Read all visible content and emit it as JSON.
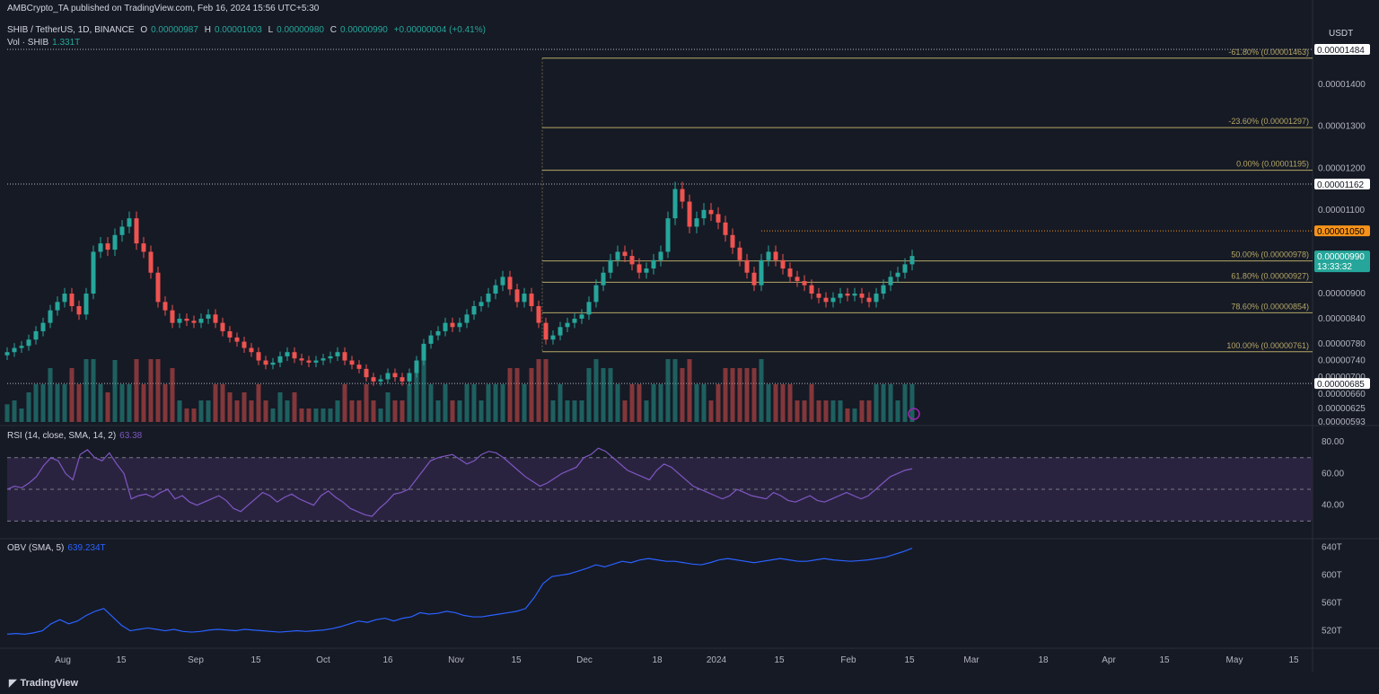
{
  "header": {
    "publisher": "AMBCrypto_TA published on TradingView.com, Feb 16, 2024 15:56 UTC+5:30",
    "symbol": "SHIB / TetherUS, 1D, BINANCE",
    "o_label": "O",
    "o_value": "0.00000987",
    "h_label": "H",
    "h_value": "0.00001003",
    "l_label": "L",
    "l_value": "0.00000980",
    "c_label": "C",
    "c_value": "0.00000990",
    "change": "+0.00000004 (+0.41%)",
    "vol_label": "Vol · SHIB",
    "vol_value": "1.331T"
  },
  "colors": {
    "background": "#161a25",
    "up": "#26a69a",
    "down": "#ef5350",
    "fib": "#b5a766",
    "rsi": "#7e57c2",
    "rsi_band": "#2a2340",
    "obv": "#2962ff",
    "orange": "#f7931a",
    "axis_text": "#b2b5be"
  },
  "currency": "USDT",
  "footer": {
    "logo": "TradingView"
  },
  "chart_data": [
    {
      "type": "candlestick",
      "title": "SHIB / TetherUS, 1D, BINANCE",
      "y_axis_ticks": [
        "0.00001400",
        "0.00001300",
        "0.00001200",
        "0.00001100",
        "0.00000900",
        "0.00000840",
        "0.00000780",
        "0.00000740",
        "0.00000700",
        "0.00000660",
        "0.00000625",
        "0.00000593"
      ],
      "price_labels": [
        {
          "value": "0.00001484",
          "style": "white"
        },
        {
          "value": "0.00001162",
          "style": "white"
        },
        {
          "value": "0.00001050",
          "style": "orange"
        },
        {
          "value": "0.00000990",
          "style": "green",
          "countdown": "13:33:32"
        },
        {
          "value": "0.00000685",
          "style": "white"
        }
      ],
      "fib_levels": [
        {
          "label": "-61.80% (0.00001463)",
          "price": 1.463e-05
        },
        {
          "label": "-23.60% (0.00001297)",
          "price": 1.297e-05
        },
        {
          "label": "0.00% (0.00001195)",
          "price": 1.195e-05
        },
        {
          "label": "50.00% (0.00000978)",
          "price": 9.78e-06
        },
        {
          "label": "61.80% (0.00000927)",
          "price": 9.27e-06
        },
        {
          "label": "78.60% (0.00000854)",
          "price": 8.54e-06
        },
        {
          "label": "100.00% (0.00000761)",
          "price": 7.61e-06
        }
      ],
      "x_ticks": [
        "Aug",
        "15",
        "Sep",
        "15",
        "Oct",
        "16",
        "Nov",
        "15",
        "Dec",
        "18",
        "2024",
        "15",
        "Feb",
        "15",
        "Mar",
        "18",
        "Apr",
        "15",
        "May",
        "15"
      ],
      "close_series": [
        7.6e-06,
        7.7e-06,
        7.75e-06,
        7.9e-06,
        8.1e-06,
        8.3e-06,
        8.6e-06,
        8.8e-06,
        9e-06,
        8.7e-06,
        8.5e-06,
        9e-06,
        1e-05,
        1.02e-05,
        1.005e-05,
        1.04e-05,
        1.06e-05,
        1.08e-05,
        1.02e-05,
        1e-05,
        9.5e-06,
        8.8e-06,
        8.6e-06,
        8.3e-06,
        8.4e-06,
        8.35e-06,
        8.3e-06,
        8.4e-06,
        8.5e-06,
        8.3e-06,
        8.1e-06,
        7.95e-06,
        7.85e-06,
        7.7e-06,
        7.6e-06,
        7.4e-06,
        7.3e-06,
        7.35e-06,
        7.5e-06,
        7.6e-06,
        7.45e-06,
        7.4e-06,
        7.35e-06,
        7.4e-06,
        7.45e-06,
        7.5e-06,
        7.6e-06,
        7.4e-06,
        7.3e-06,
        7.2e-06,
        7e-06,
        6.9e-06,
        6.95e-06,
        7.1e-06,
        7e-06,
        6.9e-06,
        7.1e-06,
        7.4e-06,
        7.8e-06,
        8e-06,
        8.1e-06,
        8.3e-06,
        8.2e-06,
        8.3e-06,
        8.5e-06,
        8.7e-06,
        8.8e-06,
        9e-06,
        9.2e-06,
        9.4e-06,
        9.1e-06,
        8.8e-06,
        9e-06,
        8.7e-06,
        8.3e-06,
        7.9e-06,
        8e-06,
        8.2e-06,
        8.3e-06,
        8.4e-06,
        8.5e-06,
        8.8e-06,
        9.2e-06,
        9.5e-06,
        9.8e-06,
        1e-05,
        9.9e-06,
        9.7e-06,
        9.5e-06,
        9.6e-06,
        9.8e-06,
        1e-05,
        1.08e-05,
        1.15e-05,
        1.12e-05,
        1.06e-05,
        1.08e-05,
        1.1e-05,
        1.09e-05,
        1.07e-05,
        1.04e-05,
        1.01e-05,
        9.8e-06,
        9.5e-06,
        9.2e-06,
        9.8e-06,
        1e-05,
        9.8e-06,
        9.6e-06,
        9.4e-06,
        9.3e-06,
        9.2e-06,
        9e-06,
        8.9e-06,
        8.8e-06,
        8.9e-06,
        9e-06,
        8.95e-06,
        9e-06,
        8.9e-06,
        8.8e-06,
        9e-06,
        9.2e-06,
        9.4e-06,
        9.5e-06,
        9.7e-06,
        9.9e-06
      ]
    },
    {
      "type": "bar",
      "title": "Vol · SHIB",
      "latest": "1.331T"
    },
    {
      "type": "line",
      "title": "RSI (14, close, SMA, 14, 2)",
      "latest": "63.38",
      "y_ticks": [
        "80.00",
        "60.00",
        "40.00"
      ],
      "band": [
        30,
        70
      ],
      "values": [
        50,
        52,
        51,
        54,
        58,
        65,
        70,
        68,
        60,
        56,
        72,
        75,
        70,
        68,
        73,
        66,
        60,
        44,
        46,
        47,
        45,
        48,
        50,
        44,
        46,
        42,
        40,
        42,
        44,
        46,
        43,
        38,
        36,
        40,
        44,
        48,
        46,
        42,
        45,
        47,
        44,
        42,
        40,
        46,
        49,
        45,
        42,
        38,
        36,
        34,
        33,
        38,
        42,
        47,
        48,
        50,
        56,
        62,
        68,
        70,
        71,
        72,
        69,
        66,
        68,
        72,
        74,
        73,
        70,
        66,
        62,
        58,
        55,
        52,
        54,
        57,
        60,
        62,
        64,
        70,
        72,
        76,
        74,
        70,
        66,
        62,
        60,
        58,
        56,
        62,
        66,
        64,
        60,
        56,
        52,
        50,
        48,
        46,
        44,
        46,
        50,
        48,
        46,
        45,
        44,
        48,
        46,
        43,
        42,
        44,
        46,
        43,
        42,
        44,
        46,
        48,
        46,
        44,
        46,
        50,
        54,
        58,
        60,
        62,
        63
      ]
    },
    {
      "type": "line",
      "title": "OBV (SMA, 5)",
      "latest": "639.234T",
      "y_ticks": [
        "640T",
        "600T",
        "560T",
        "520T"
      ],
      "values": [
        515,
        516,
        515,
        517,
        520,
        530,
        536,
        530,
        534,
        542,
        548,
        552,
        540,
        528,
        520,
        522,
        524,
        522,
        520,
        522,
        519,
        518,
        519,
        521,
        522,
        521,
        520,
        522,
        521,
        520,
        519,
        518,
        519,
        520,
        519,
        520,
        521,
        523,
        526,
        530,
        534,
        532,
        536,
        538,
        534,
        538,
        540,
        546,
        544,
        545,
        548,
        546,
        542,
        540,
        540,
        542,
        544,
        546,
        548,
        552,
        568,
        588,
        598,
        600,
        602,
        606,
        610,
        615,
        612,
        616,
        620,
        618,
        622,
        624,
        622,
        620,
        620,
        618,
        616,
        615,
        618,
        622,
        624,
        622,
        620,
        618,
        620,
        622,
        624,
        622,
        620,
        620,
        622,
        624,
        622,
        621,
        620,
        621,
        622,
        624,
        626,
        630,
        634,
        639
      ]
    }
  ]
}
